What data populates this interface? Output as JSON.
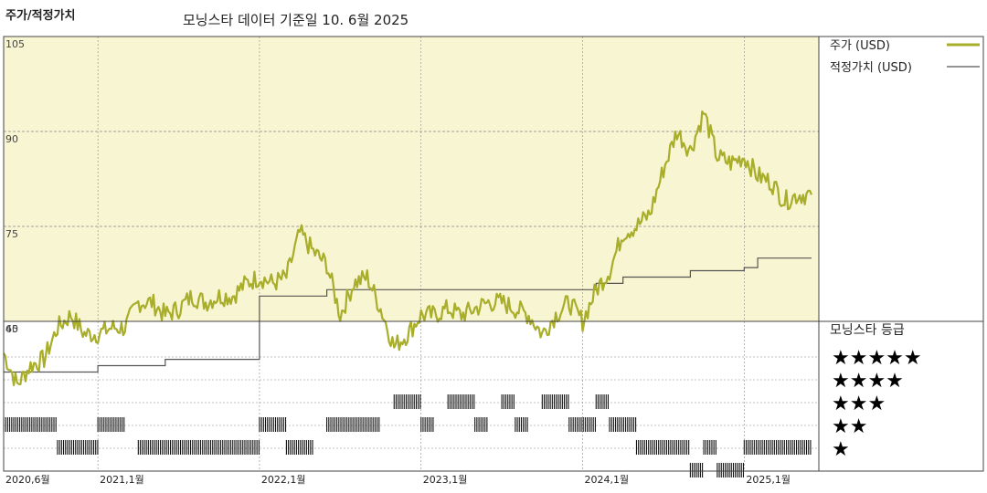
{
  "header": {
    "title": "주가/적정가치",
    "subtitle": "모닝스타 데이터 기준일 10. 6월 2025"
  },
  "legend": {
    "price_label": "주가 (USD)",
    "fair_label": "적정가치 (USD)",
    "price_color": "#a8ad2a",
    "fair_color": "#555555"
  },
  "rating_panel": {
    "title": "모닝스타 등급",
    "stars": [
      "★★★★★",
      "★★★★",
      "★★★",
      "★★",
      "★"
    ]
  },
  "colors": {
    "plot_bg": "#f8f5d2",
    "grid": "#888888",
    "rating_bar": "#111111"
  },
  "chart_data": {
    "type": "line",
    "ylim": [
      45,
      105
    ],
    "y_ticks": [
      "105",
      "90",
      "75",
      "60",
      "45"
    ],
    "x_ticks": [
      "2020,6월",
      "2021,1월",
      "2022,1월",
      "2023,1월",
      "2024,1월",
      "2025,1월"
    ],
    "x_range": [
      "2020-06",
      "2025-06"
    ],
    "series": [
      {
        "name": "주가 (USD)",
        "points": [
          [
            "2020-06",
            55
          ],
          [
            "2020-07",
            50
          ],
          [
            "2020-08",
            53
          ],
          [
            "2020-09",
            54
          ],
          [
            "2020-10",
            59
          ],
          [
            "2020-11",
            61
          ],
          [
            "2020-12",
            58
          ],
          [
            "2021-01",
            58
          ],
          [
            "2021-02",
            59
          ],
          [
            "2021-03",
            59
          ],
          [
            "2021-04",
            63
          ],
          [
            "2021-05",
            63
          ],
          [
            "2021-06",
            61
          ],
          [
            "2021-07",
            62
          ],
          [
            "2021-08",
            64
          ],
          [
            "2021-09",
            63
          ],
          [
            "2021-10",
            64
          ],
          [
            "2021-11",
            64
          ],
          [
            "2021-12",
            66
          ],
          [
            "2022-01",
            67
          ],
          [
            "2022-02",
            66
          ],
          [
            "2022-03",
            67
          ],
          [
            "2022-04",
            74
          ],
          [
            "2022-05",
            71
          ],
          [
            "2022-06",
            69
          ],
          [
            "2022-07",
            61
          ],
          [
            "2022-08",
            66
          ],
          [
            "2022-09",
            67
          ],
          [
            "2022-10",
            62
          ],
          [
            "2022-11",
            56
          ],
          [
            "2022-12",
            58
          ],
          [
            "2023-01",
            61
          ],
          [
            "2023-02",
            61
          ],
          [
            "2023-03",
            62
          ],
          [
            "2023-04",
            61
          ],
          [
            "2023-05",
            62
          ],
          [
            "2023-06",
            63
          ],
          [
            "2023-07",
            63
          ],
          [
            "2023-08",
            62
          ],
          [
            "2023-09",
            61
          ],
          [
            "2023-10",
            58
          ],
          [
            "2023-11",
            61
          ],
          [
            "2023-12",
            63
          ],
          [
            "2024-01",
            60
          ],
          [
            "2024-02",
            65
          ],
          [
            "2024-03",
            68
          ],
          [
            "2024-04",
            74
          ],
          [
            "2024-05",
            75
          ],
          [
            "2024-06",
            77
          ],
          [
            "2024-07",
            84
          ],
          [
            "2024-08",
            90
          ],
          [
            "2024-09",
            87
          ],
          [
            "2024-10",
            93
          ],
          [
            "2024-11",
            86
          ],
          [
            "2024-12",
            85
          ],
          [
            "2025-01",
            86
          ],
          [
            "2025-02",
            83
          ],
          [
            "2025-03",
            82
          ],
          [
            "2025-04",
            79
          ],
          [
            "2025-05",
            80
          ],
          [
            "2025-06",
            80
          ]
        ]
      },
      {
        "name": "적정가치 (USD)",
        "points": [
          [
            "2020-06",
            52
          ],
          [
            "2021-01",
            52
          ],
          [
            "2021-01",
            53
          ],
          [
            "2021-06",
            53
          ],
          [
            "2021-06",
            54
          ],
          [
            "2022-01",
            54
          ],
          [
            "2022-01",
            64
          ],
          [
            "2022-06",
            64
          ],
          [
            "2022-06",
            65
          ],
          [
            "2024-02",
            65
          ],
          [
            "2024-02",
            66
          ],
          [
            "2024-04",
            66
          ],
          [
            "2024-04",
            67
          ],
          [
            "2024-09",
            67
          ],
          [
            "2024-09",
            68
          ],
          [
            "2025-01",
            68
          ],
          [
            "2025-01",
            68.5
          ],
          [
            "2025-02",
            68.5
          ],
          [
            "2025-02",
            70
          ],
          [
            "2025-06",
            70
          ]
        ]
      }
    ],
    "ratings": [
      {
        "start": "2020-06",
        "end": "2020-10",
        "stars": 3
      },
      {
        "start": "2020-10",
        "end": "2021-01",
        "stars": 2
      },
      {
        "start": "2021-01",
        "end": "2021-03",
        "stars": 3
      },
      {
        "start": "2021-04",
        "end": "2022-01",
        "stars": 2
      },
      {
        "start": "2022-01",
        "end": "2022-03",
        "stars": 3
      },
      {
        "start": "2022-03",
        "end": "2022-05",
        "stars": 2
      },
      {
        "start": "2022-06",
        "end": "2022-10",
        "stars": 3
      },
      {
        "start": "2022-11",
        "end": "2023-01",
        "stars": 4
      },
      {
        "start": "2023-01",
        "end": "2023-02",
        "stars": 3
      },
      {
        "start": "2023-03",
        "end": "2023-05",
        "stars": 4
      },
      {
        "start": "2023-05",
        "end": "2023-06",
        "stars": 3
      },
      {
        "start": "2023-07",
        "end": "2023-08",
        "stars": 4
      },
      {
        "start": "2023-08",
        "end": "2023-09",
        "stars": 3
      },
      {
        "start": "2023-10",
        "end": "2023-12",
        "stars": 4
      },
      {
        "start": "2023-12",
        "end": "2024-02",
        "stars": 3
      },
      {
        "start": "2024-02",
        "end": "2024-03",
        "stars": 4
      },
      {
        "start": "2024-03",
        "end": "2024-05",
        "stars": 3
      },
      {
        "start": "2024-05",
        "end": "2024-09",
        "stars": 2
      },
      {
        "start": "2024-09",
        "end": "2024-10",
        "stars": 1
      },
      {
        "start": "2024-10",
        "end": "2024-11",
        "stars": 2
      },
      {
        "start": "2024-11",
        "end": "2025-01",
        "stars": 1
      },
      {
        "start": "2025-01",
        "end": "2025-06",
        "stars": 2
      }
    ]
  }
}
